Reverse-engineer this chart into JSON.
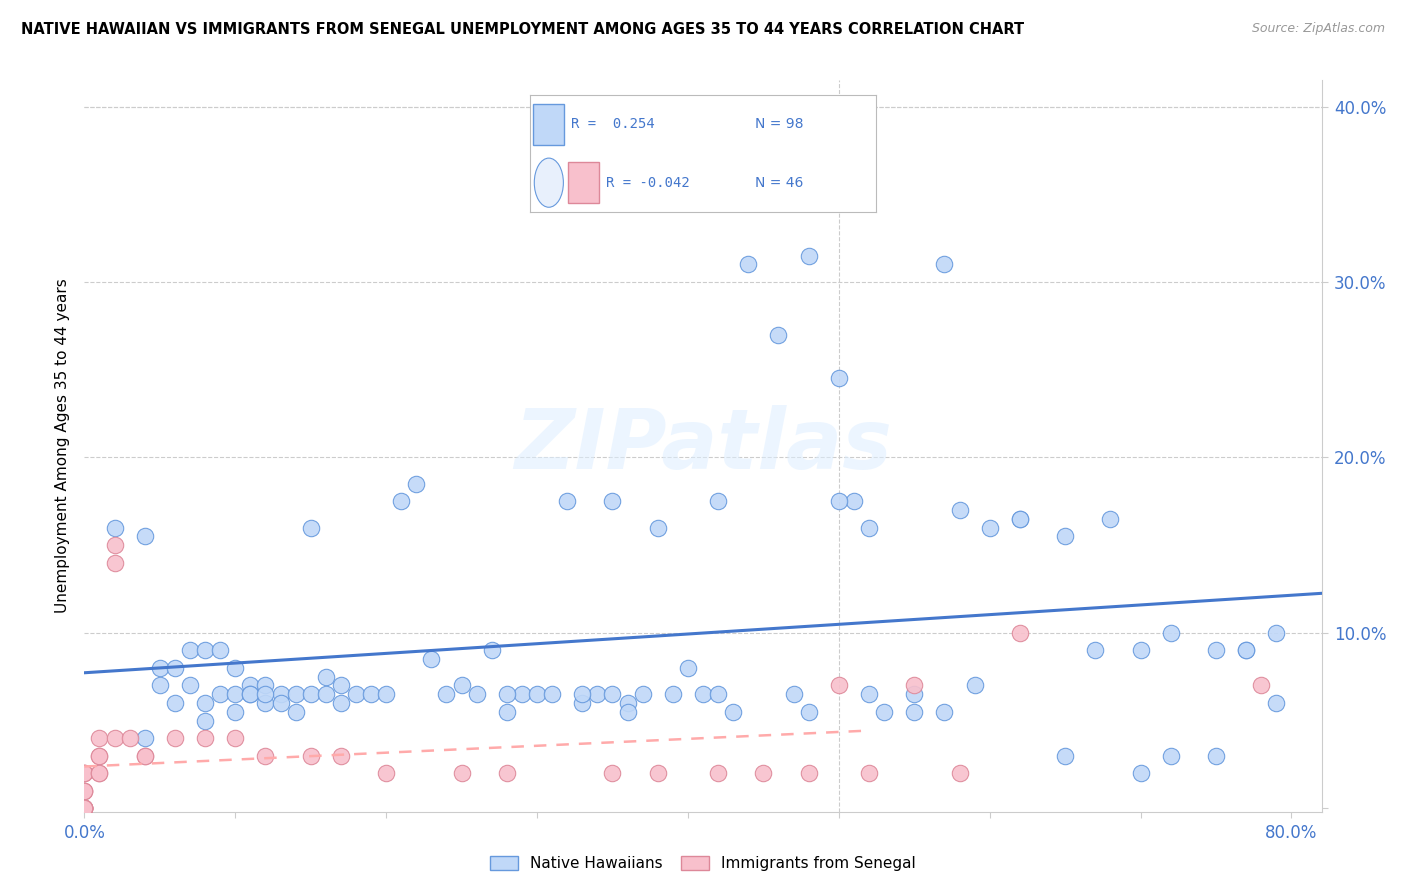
{
  "title": "NATIVE HAWAIIAN VS IMMIGRANTS FROM SENEGAL UNEMPLOYMENT AMONG AGES 35 TO 44 YEARS CORRELATION CHART",
  "source": "Source: ZipAtlas.com",
  "ylabel": "Unemployment Among Ages 35 to 44 years",
  "xlim": [
    0.0,
    0.82
  ],
  "ylim": [
    -0.002,
    0.415
  ],
  "xtick_positions": [
    0.0,
    0.1,
    0.2,
    0.3,
    0.4,
    0.5,
    0.6,
    0.7,
    0.8
  ],
  "xticklabels": [
    "0.0%",
    "",
    "",
    "",
    "",
    "",
    "",
    "",
    "80.0%"
  ],
  "ytick_positions": [
    0.0,
    0.1,
    0.2,
    0.3,
    0.4
  ],
  "yticklabels": [
    "",
    "10.0%",
    "20.0%",
    "30.0%",
    "40.0%"
  ],
  "legend_r1": "R =  0.254",
  "legend_n1": "N = 98",
  "legend_r2": "R = -0.042",
  "legend_n2": "N = 46",
  "blue_face": "#c0d8f8",
  "blue_edge": "#6699dd",
  "pink_face": "#f8c0cc",
  "pink_edge": "#dd8899",
  "line_blue": "#4477cc",
  "line_pink": "#ffaaaa",
  "text_blue": "#4477cc",
  "watermark": "ZIPatlas",
  "grid_color": "#cccccc",
  "native_hawaiian_x": [
    0.02,
    0.04,
    0.05,
    0.05,
    0.06,
    0.06,
    0.07,
    0.07,
    0.08,
    0.08,
    0.09,
    0.09,
    0.1,
    0.1,
    0.1,
    0.11,
    0.11,
    0.12,
    0.12,
    0.13,
    0.13,
    0.14,
    0.14,
    0.15,
    0.15,
    0.16,
    0.16,
    0.17,
    0.17,
    0.18,
    0.19,
    0.2,
    0.21,
    0.22,
    0.23,
    0.24,
    0.25,
    0.26,
    0.27,
    0.28,
    0.29,
    0.3,
    0.31,
    0.32,
    0.33,
    0.34,
    0.35,
    0.36,
    0.37,
    0.38,
    0.39,
    0.4,
    0.41,
    0.42,
    0.44,
    0.46,
    0.48,
    0.5,
    0.51,
    0.52,
    0.55,
    0.57,
    0.58,
    0.6,
    0.62,
    0.65,
    0.67,
    0.7,
    0.72,
    0.75,
    0.77,
    0.79,
    0.04,
    0.08,
    0.11,
    0.12,
    0.28,
    0.33,
    0.35,
    0.36,
    0.42,
    0.43,
    0.47,
    0.48,
    0.5,
    0.52,
    0.53,
    0.55,
    0.57,
    0.59,
    0.62,
    0.65,
    0.68,
    0.7,
    0.72,
    0.75,
    0.77,
    0.79
  ],
  "native_hawaiian_y": [
    0.16,
    0.155,
    0.08,
    0.07,
    0.08,
    0.06,
    0.09,
    0.07,
    0.09,
    0.06,
    0.09,
    0.065,
    0.08,
    0.065,
    0.055,
    0.07,
    0.065,
    0.07,
    0.06,
    0.065,
    0.06,
    0.065,
    0.055,
    0.16,
    0.065,
    0.075,
    0.065,
    0.07,
    0.06,
    0.065,
    0.065,
    0.065,
    0.175,
    0.185,
    0.085,
    0.065,
    0.07,
    0.065,
    0.09,
    0.055,
    0.065,
    0.065,
    0.065,
    0.175,
    0.06,
    0.065,
    0.175,
    0.06,
    0.065,
    0.16,
    0.065,
    0.08,
    0.065,
    0.175,
    0.31,
    0.27,
    0.315,
    0.245,
    0.175,
    0.16,
    0.055,
    0.31,
    0.17,
    0.16,
    0.165,
    0.03,
    0.09,
    0.09,
    0.1,
    0.03,
    0.09,
    0.1,
    0.04,
    0.05,
    0.065,
    0.065,
    0.065,
    0.065,
    0.065,
    0.055,
    0.065,
    0.055,
    0.065,
    0.055,
    0.175,
    0.065,
    0.055,
    0.065,
    0.055,
    0.07,
    0.165,
    0.155,
    0.165,
    0.02,
    0.03,
    0.09,
    0.09,
    0.06
  ],
  "senegal_x": [
    0.0,
    0.0,
    0.0,
    0.0,
    0.0,
    0.0,
    0.0,
    0.0,
    0.0,
    0.0,
    0.0,
    0.0,
    0.0,
    0.0,
    0.0,
    0.01,
    0.01,
    0.01,
    0.01,
    0.01,
    0.02,
    0.02,
    0.02,
    0.03,
    0.04,
    0.04,
    0.06,
    0.08,
    0.1,
    0.12,
    0.15,
    0.17,
    0.2,
    0.25,
    0.28,
    0.35,
    0.38,
    0.42,
    0.45,
    0.48,
    0.5,
    0.52,
    0.55,
    0.58,
    0.62,
    0.78
  ],
  "senegal_y": [
    0.02,
    0.02,
    0.02,
    0.01,
    0.01,
    0.01,
    0.0,
    0.0,
    0.0,
    0.0,
    0.0,
    0.0,
    0.0,
    0.0,
    0.0,
    0.03,
    0.04,
    0.03,
    0.02,
    0.02,
    0.15,
    0.14,
    0.04,
    0.04,
    0.03,
    0.03,
    0.04,
    0.04,
    0.04,
    0.03,
    0.03,
    0.03,
    0.02,
    0.02,
    0.02,
    0.02,
    0.02,
    0.02,
    0.02,
    0.02,
    0.07,
    0.02,
    0.07,
    0.02,
    0.1,
    0.07
  ]
}
